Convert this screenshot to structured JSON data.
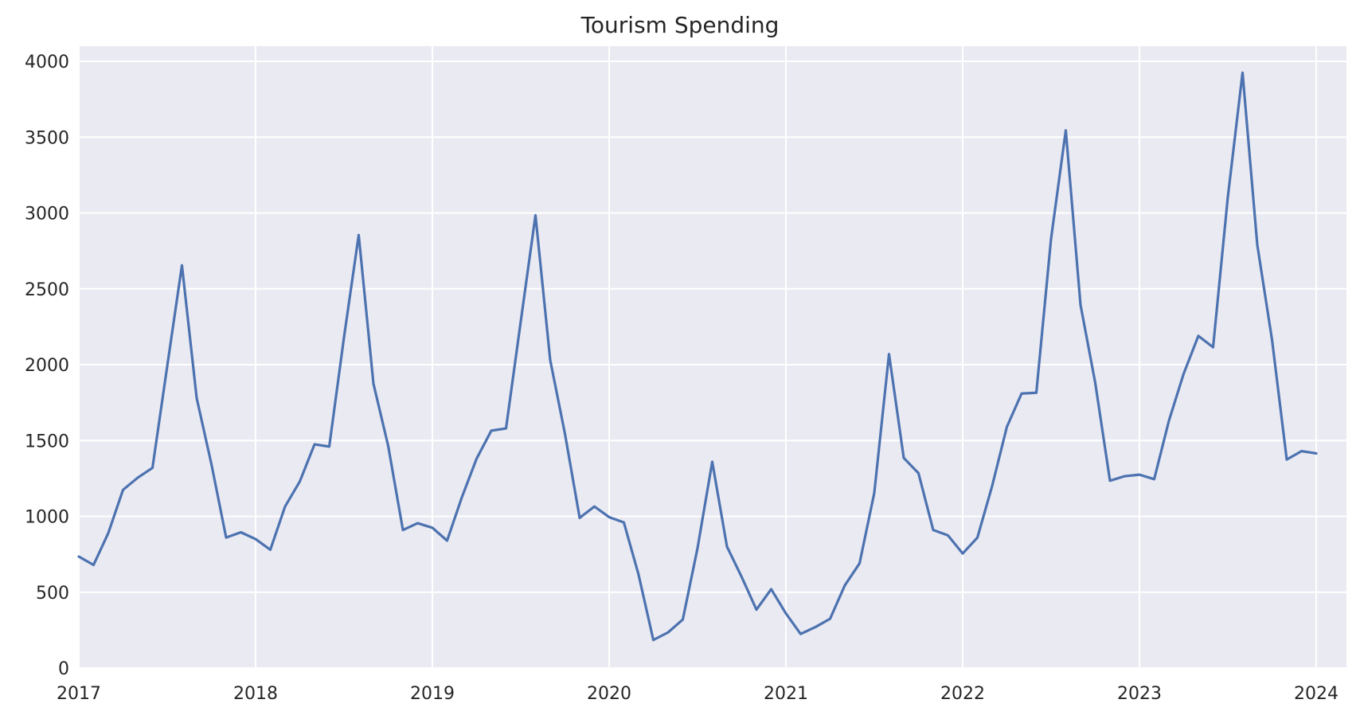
{
  "chart_data": {
    "type": "line",
    "title": "Tourism Spending",
    "xlabel": "",
    "ylabel": "",
    "x_start": "2017-01",
    "x_frequency": "monthly",
    "xlim": [
      "2017-01",
      "2024-01"
    ],
    "ylim": [
      0,
      4100
    ],
    "x_ticks": [
      {
        "date": "2017-01",
        "label": "2017"
      },
      {
        "date": "2018-01",
        "label": "2018"
      },
      {
        "date": "2019-01",
        "label": "2019"
      },
      {
        "date": "2020-01",
        "label": "2020"
      },
      {
        "date": "2021-01",
        "label": "2021"
      },
      {
        "date": "2022-01",
        "label": "2022"
      },
      {
        "date": "2023-01",
        "label": "2023"
      },
      {
        "date": "2024-01",
        "label": "2024"
      }
    ],
    "y_ticks": [
      {
        "value": 0,
        "label": "0"
      },
      {
        "value": 500,
        "label": "500"
      },
      {
        "value": 1000,
        "label": "1000"
      },
      {
        "value": 1500,
        "label": "1500"
      },
      {
        "value": 2000,
        "label": "2000"
      },
      {
        "value": 2500,
        "label": "2500"
      },
      {
        "value": 3000,
        "label": "3000"
      },
      {
        "value": 3500,
        "label": "3500"
      },
      {
        "value": 4000,
        "label": "4000"
      }
    ],
    "grid": true,
    "background_color": "#eaeaf2",
    "series": [
      {
        "color": "#4c72b0",
        "values": [
          735,
          680,
          890,
          1175,
          1255,
          1320,
          1990,
          2655,
          1780,
          1345,
          860,
          895,
          850,
          780,
          1065,
          1230,
          1475,
          1460,
          2180,
          2855,
          1875,
          1465,
          910,
          955,
          925,
          840,
          1125,
          1380,
          1565,
          1580,
          2285,
          2985,
          2030,
          1545,
          990,
          1065,
          995,
          960,
          615,
          185,
          235,
          320,
          790,
          1360,
          800,
          600,
          385,
          520,
          360,
          225,
          270,
          325,
          545,
          690,
          1155,
          2070,
          1385,
          1285,
          910,
          875,
          755,
          860,
          1200,
          1590,
          1810,
          1815,
          2830,
          3545,
          2395,
          1880,
          1235,
          1265,
          1275,
          1245,
          1630,
          1940,
          2190,
          2115,
          3105,
          3925,
          2790,
          2165,
          1375,
          1430,
          1415
        ]
      }
    ]
  }
}
